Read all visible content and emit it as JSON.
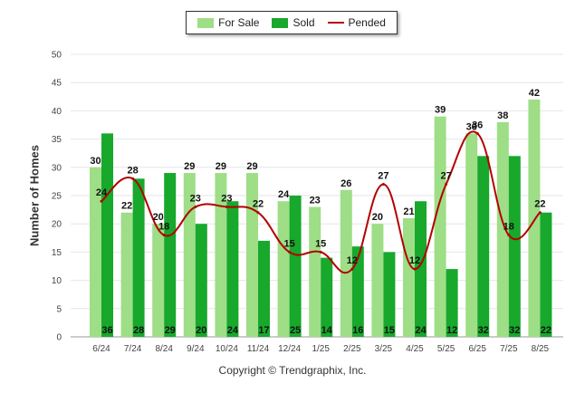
{
  "legend": {
    "for_sale": "For Sale",
    "sold": "Sold",
    "pended": "Pended"
  },
  "credit": "Copyright © Trendgraphix, Inc.",
  "colors": {
    "for_sale": "#9ede86",
    "sold": "#17a82c",
    "pended": "#b30000",
    "grid": "#e6e6e6"
  },
  "chart_data": {
    "type": "bar",
    "ylabel": "Number of Homes",
    "ylim": [
      0,
      50
    ],
    "yticks": [
      0,
      5,
      10,
      15,
      20,
      25,
      30,
      35,
      40,
      45,
      50
    ],
    "grid": true,
    "legend_position": "top-center",
    "categories": [
      "6/24",
      "7/24",
      "8/24",
      "9/24",
      "10/24",
      "11/24",
      "12/24",
      "1/25",
      "2/25",
      "3/25",
      "4/25",
      "5/25",
      "6/25",
      "7/25",
      "8/25"
    ],
    "series": [
      {
        "name": "For Sale",
        "type": "bar",
        "values": [
          30,
          22,
          20,
          29,
          29,
          29,
          24,
          23,
          26,
          20,
          21,
          39,
          36,
          38,
          42
        ]
      },
      {
        "name": "Sold",
        "type": "bar",
        "values": [
          36,
          28,
          29,
          20,
          24,
          17,
          25,
          14,
          16,
          15,
          24,
          12,
          32,
          32,
          22
        ]
      },
      {
        "name": "Pended",
        "type": "line",
        "values": [
          24,
          28,
          18,
          23,
          23,
          22,
          15,
          15,
          12,
          27,
          12,
          27,
          36,
          18,
          22
        ]
      }
    ]
  }
}
